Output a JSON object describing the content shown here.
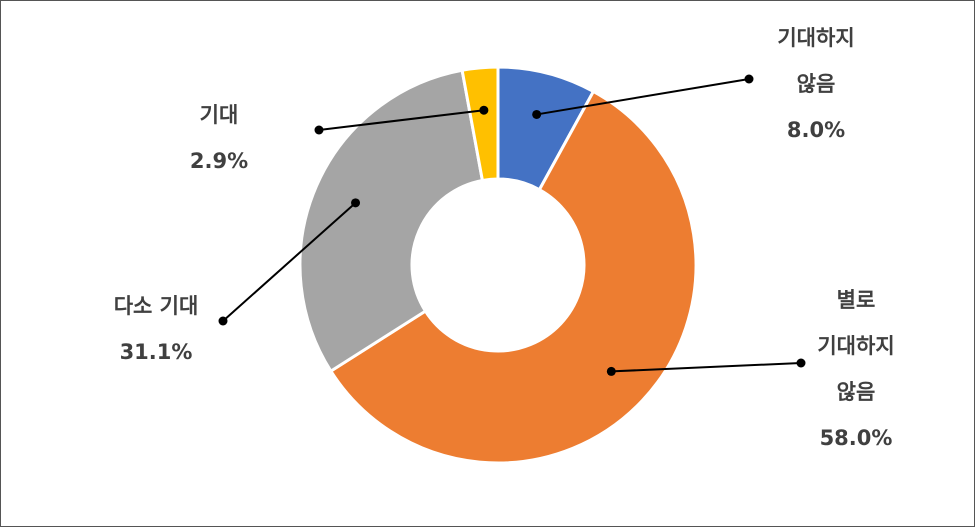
{
  "chart_data": {
    "type": "pie",
    "donut": true,
    "title": "",
    "legend": "none",
    "slices": [
      {
        "label_lines": [
          "기대하지",
          "않음"
        ],
        "value": 8.0,
        "value_label": "8.0%",
        "color": "#4472C4"
      },
      {
        "label_lines": [
          "별로",
          "기대하지",
          "않음"
        ],
        "value": 58.0,
        "value_label": "58.0%",
        "color": "#ED7D31"
      },
      {
        "label_lines": [
          "다소 기대"
        ],
        "value": 31.1,
        "value_label": "31.1%",
        "color": "#A5A5A5"
      },
      {
        "label_lines": [
          "기대"
        ],
        "value": 2.9,
        "value_label": "2.9%",
        "color": "#FFC000"
      }
    ]
  }
}
